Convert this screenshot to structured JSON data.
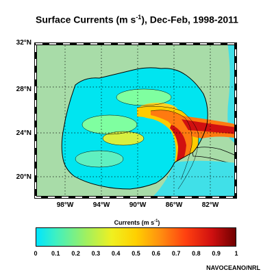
{
  "title": {
    "prefix": "Surface Currents (m s",
    "sup": "-1",
    "suffix": "), Dec-Feb, 1998-2011"
  },
  "map": {
    "lat_labels": [
      "32°N",
      "28°N",
      "24°N",
      "20°N"
    ],
    "lon_labels": [
      "98°W",
      "94°W",
      "90°W",
      "86°W",
      "82°W"
    ],
    "colors": {
      "land": "#a8dca8",
      "low_current": "#00e0f0",
      "high_current": "#8b0000"
    }
  },
  "colorbar": {
    "title_prefix": "Currents (m s",
    "title_sup": "-1",
    "title_suffix": ")",
    "ticks": [
      "0",
      "0.1",
      "0.2",
      "0.3",
      "0.4",
      "0.5",
      "0.6",
      "0.7",
      "0.8",
      "0.9",
      "1"
    ]
  },
  "credit": "NAVOCEANO/NRL"
}
